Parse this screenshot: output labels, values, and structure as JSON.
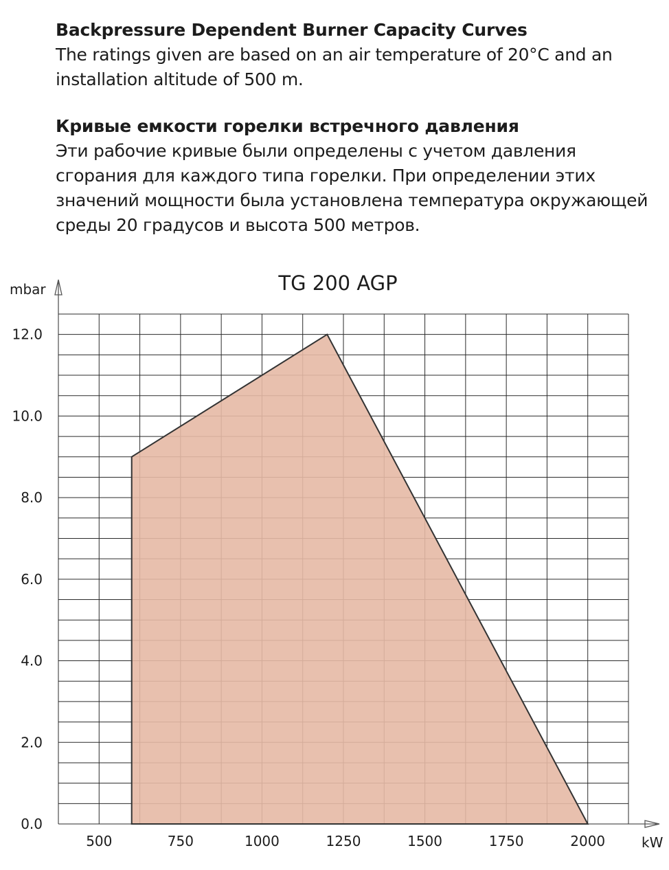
{
  "intro": {
    "en_heading": "Backpressure Dependent Burner Capacity Curves",
    "en_body": "The ratings given are based on an air temperature of 20°C and an installation altitude of 500 m.",
    "ru_heading": "Кривые емкости горелки встречного давления",
    "ru_body": "Эти рабочие кривые были определены с учетом давления сгорания для каждого типа горелки. При определении этих значений мощности была установлена температура окружающей среды 20 градусов и высота 500 метров."
  },
  "colors": {
    "fill": "#e6b9a5",
    "outline": "#333333",
    "grid": "#2a2a2a"
  },
  "chart_data": {
    "type": "area",
    "title": "TG 200 AGP",
    "xlabel": "kW",
    "ylabel": "mbar",
    "xlim": [
      375,
      2125
    ],
    "ylim": [
      0,
      12.5
    ],
    "x_ticks": [
      500,
      750,
      1000,
      1250,
      1500,
      1750,
      2000
    ],
    "x_tick_labels": [
      "500",
      "750",
      "1000",
      "1250",
      "1500",
      "1750",
      "2000"
    ],
    "y_ticks": [
      0,
      2,
      4,
      6,
      8,
      10,
      12
    ],
    "y_tick_labels": [
      "0.0",
      "2.0",
      "4.0",
      "6.0",
      "8.0",
      "10.0",
      "12.0"
    ],
    "grid": true,
    "series": [
      {
        "x": [
          600,
          600,
          1200,
          2000
        ],
        "y": [
          0,
          9.0,
          12.0,
          0
        ]
      }
    ]
  }
}
